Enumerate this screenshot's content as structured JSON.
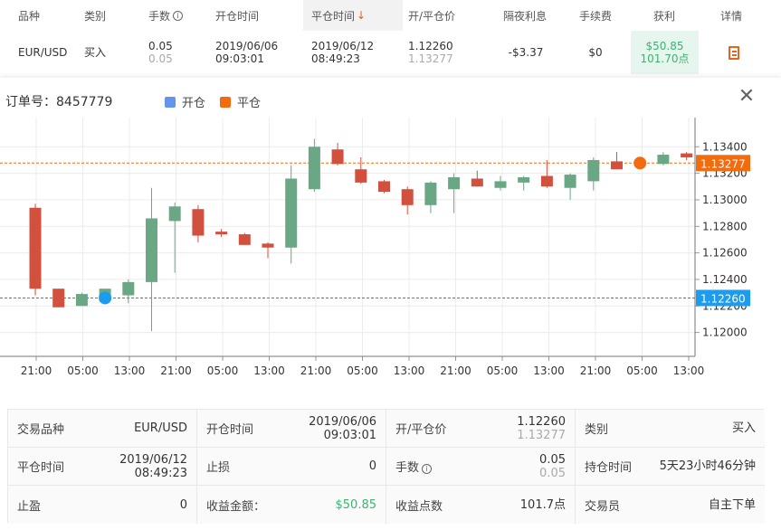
{
  "table": {
    "headers": [
      "品种",
      "类别",
      "手数",
      "开仓时间",
      "平仓时间",
      "开/平仓价",
      "隔夜利息",
      "手续费",
      "获利",
      "详情"
    ],
    "row": {
      "symbol": "EUR/USD",
      "type": "买入",
      "lots": "0.05",
      "lots_sub": "0.05",
      "open_date": "2019/06/06",
      "open_time": "09:03:01",
      "close_date": "2019/06/12",
      "close_time": "08:49:23",
      "open_price": "1.12260",
      "close_price": "1.13277",
      "swap": "-$3.37",
      "fee": "$0",
      "profit": "$50.85",
      "profit_points": "101.70点"
    }
  },
  "modal": {
    "order_label": "订单号：8457779",
    "legend_open": "开仓",
    "legend_close": "平仓",
    "close_icon": "close-icon",
    "colors": {
      "open": "#6495ed",
      "close": "#f26b0f",
      "up": "#6aa784",
      "down": "#d2503e",
      "open_line": "#2b8cc4",
      "close_line": "#f26b0f",
      "open_tag": "#1b9cf0",
      "close_tag": "#f26b0f"
    }
  },
  "chart_data": {
    "type": "candlestick",
    "x_ticks": [
      "21:00",
      "05:00",
      "13:00",
      "21:00",
      "05:00",
      "13:00",
      "21:00",
      "05:00",
      "13:00",
      "21:00",
      "05:00",
      "13:00",
      "21:00",
      "05:00",
      "13:00"
    ],
    "y_ticks": [
      "1.13400",
      "1.13200",
      "1.13000",
      "1.12800",
      "1.12600",
      "1.12400",
      "1.12200",
      "1.12000"
    ],
    "ylim": [
      1.1182,
      1.1362
    ],
    "open_price_tag": "1.12260",
    "close_price_tag": "1.13277",
    "open_price": 1.1226,
    "close_price": 1.13277,
    "candles": [
      {
        "o": 1.1294,
        "h": 1.1297,
        "l": 1.1228,
        "c": 1.1233
      },
      {
        "o": 1.1233,
        "h": 1.1233,
        "l": 1.1219,
        "c": 1.1219
      },
      {
        "o": 1.122,
        "h": 1.123,
        "l": 1.122,
        "c": 1.1229
      },
      {
        "o": 1.1225,
        "h": 1.1233,
        "l": 1.1222,
        "c": 1.1233
      },
      {
        "o": 1.1228,
        "h": 1.124,
        "l": 1.1222,
        "c": 1.1238
      },
      {
        "o": 1.1238,
        "h": 1.1309,
        "l": 1.1201,
        "c": 1.1286
      },
      {
        "o": 1.1284,
        "h": 1.1298,
        "l": 1.1245,
        "c": 1.1295
      },
      {
        "o": 1.1293,
        "h": 1.1296,
        "l": 1.1268,
        "c": 1.1273
      },
      {
        "o": 1.1276,
        "h": 1.1278,
        "l": 1.1272,
        "c": 1.1274
      },
      {
        "o": 1.1274,
        "h": 1.1275,
        "l": 1.1266,
        "c": 1.1266
      },
      {
        "o": 1.1267,
        "h": 1.1268,
        "l": 1.1256,
        "c": 1.1264
      },
      {
        "o": 1.1264,
        "h": 1.1326,
        "l": 1.1252,
        "c": 1.1316
      },
      {
        "o": 1.1308,
        "h": 1.1346,
        "l": 1.1306,
        "c": 1.134
      },
      {
        "o": 1.1338,
        "h": 1.1343,
        "l": 1.1326,
        "c": 1.1327
      },
      {
        "o": 1.1323,
        "h": 1.1332,
        "l": 1.1312,
        "c": 1.1313
      },
      {
        "o": 1.1314,
        "h": 1.1315,
        "l": 1.1305,
        "c": 1.1306
      },
      {
        "o": 1.1308,
        "h": 1.131,
        "l": 1.1289,
        "c": 1.1296
      },
      {
        "o": 1.1296,
        "h": 1.1314,
        "l": 1.129,
        "c": 1.1313
      },
      {
        "o": 1.1308,
        "h": 1.132,
        "l": 1.129,
        "c": 1.1317
      },
      {
        "o": 1.1316,
        "h": 1.1322,
        "l": 1.131,
        "c": 1.131
      },
      {
        "o": 1.1309,
        "h": 1.1318,
        "l": 1.1307,
        "c": 1.1314
      },
      {
        "o": 1.1313,
        "h": 1.1318,
        "l": 1.1307,
        "c": 1.1317
      },
      {
        "o": 1.1318,
        "h": 1.133,
        "l": 1.1309,
        "c": 1.131
      },
      {
        "o": 1.1309,
        "h": 1.132,
        "l": 1.13,
        "c": 1.1319
      },
      {
        "o": 1.1314,
        "h": 1.1332,
        "l": 1.1307,
        "c": 1.133
      },
      {
        "o": 1.1329,
        "h": 1.1336,
        "l": 1.1323,
        "c": 1.1323
      },
      {
        "o": 1.1328,
        "h": 1.133,
        "l": 1.1326,
        "c": 1.1329
      },
      {
        "o": 1.1327,
        "h": 1.1336,
        "l": 1.1326,
        "c": 1.1334
      },
      {
        "o": 1.1335,
        "h": 1.1336,
        "l": 1.133,
        "c": 1.1332
      }
    ],
    "open_marker_index": 3,
    "close_marker_index": 26
  },
  "summary": {
    "cells": [
      {
        "label": "交易品种",
        "value": "EUR/USD",
        "sub": ""
      },
      {
        "label": "开仓时间",
        "value": "2019/06/06",
        "sub2": "09:03:01"
      },
      {
        "label": "开/平仓价",
        "value": "1.12260",
        "sub": "1.13277"
      },
      {
        "label": "类别",
        "value": "买入",
        "sub": ""
      },
      {
        "label": "平仓时间",
        "value": "2019/06/12",
        "sub2": "08:49:23"
      },
      {
        "label": "止损",
        "value": "0",
        "sub": ""
      },
      {
        "label": "手数",
        "value": "0.05",
        "sub": "0.05"
      },
      {
        "label": "持仓时间",
        "value": "5天23小时46分钟",
        "sub": ""
      },
      {
        "label": "止盈",
        "value": "0",
        "sub": ""
      },
      {
        "label": "收益金额：",
        "value": "$50.85",
        "sub": ""
      },
      {
        "label": "收益点数",
        "value": "101.7点",
        "sub": ""
      },
      {
        "label": "交易员",
        "value": "自主下单",
        "sub": ""
      }
    ]
  }
}
